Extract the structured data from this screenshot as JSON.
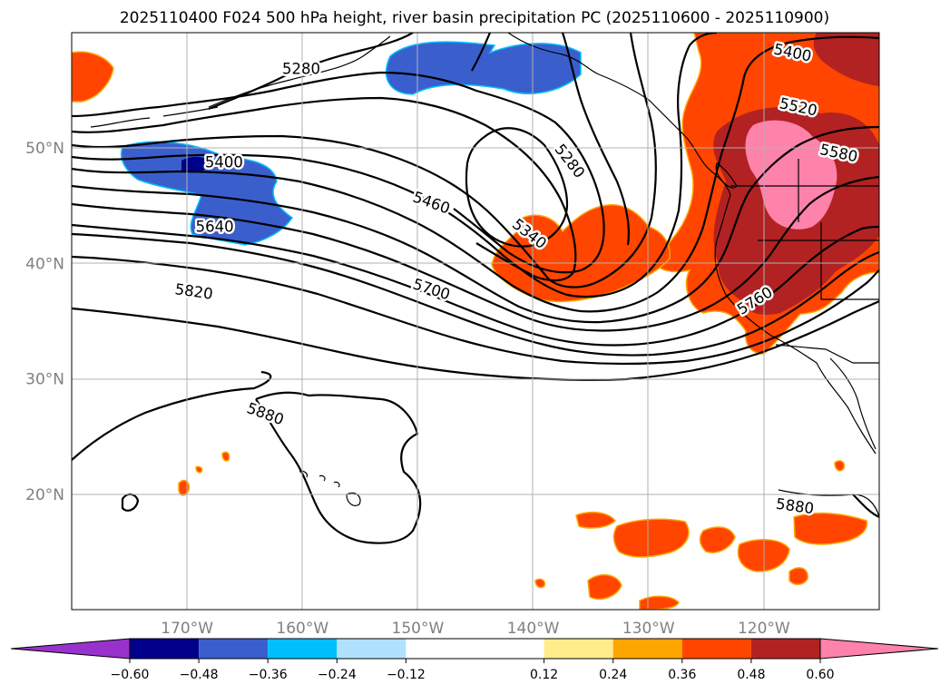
{
  "chart_data": {
    "type": "contour-map",
    "title": "2025110400 F024 500 hPa height, river basin precipitation PC (2025110600 - 2025110900)",
    "projection": "PlateCarree",
    "lon_range": [
      -180,
      -110
    ],
    "lat_range": [
      10,
      60
    ],
    "lat_ticks": [
      {
        "value": 50,
        "label": "50°N"
      },
      {
        "value": 40,
        "label": "40°N"
      },
      {
        "value": 30,
        "label": "30°N"
      },
      {
        "value": 20,
        "label": "20°N"
      }
    ],
    "lon_ticks": [
      {
        "value": -170,
        "label": "170°W"
      },
      {
        "value": -160,
        "label": "160°W"
      },
      {
        "value": -150,
        "label": "150°W"
      },
      {
        "value": -140,
        "label": "140°W"
      },
      {
        "value": -130,
        "label": "130°W"
      },
      {
        "value": -120,
        "label": "120°W"
      }
    ],
    "grid": true,
    "contour_variable": "500 hPa geopotential height (m)",
    "contour_interval": 60,
    "contour_labels": [
      {
        "value": "5280",
        "lon": -160.1,
        "lat": 56.9,
        "angle": 0
      },
      {
        "value": "5400",
        "lon": -166.8,
        "lat": 48.8,
        "angle": 0
      },
      {
        "value": "5640",
        "lon": -167.6,
        "lat": 43.2,
        "angle": 0
      },
      {
        "value": "5820",
        "lon": -169.4,
        "lat": 37.6,
        "angle": 8
      },
      {
        "value": "5880",
        "lon": -163.2,
        "lat": 27.0,
        "angle": 20
      },
      {
        "value": "5460",
        "lon": -148.8,
        "lat": 45.3,
        "angle": 20
      },
      {
        "value": "5700",
        "lon": -148.8,
        "lat": 37.8,
        "angle": 18
      },
      {
        "value": "5340",
        "lon": -140.3,
        "lat": 42.6,
        "angle": 38
      },
      {
        "value": "5280",
        "lon": -136.8,
        "lat": 48.9,
        "angle": 52
      },
      {
        "value": "5400",
        "lon": -117.5,
        "lat": 58.3,
        "angle": 12
      },
      {
        "value": "5520",
        "lon": -117.0,
        "lat": 53.6,
        "angle": 12
      },
      {
        "value": "5580",
        "lon": -113.5,
        "lat": 49.6,
        "angle": 12
      },
      {
        "value": "5760",
        "lon": -120.8,
        "lat": 36.8,
        "angle": -32
      },
      {
        "value": "5880",
        "lon": -117.3,
        "lat": 19.0,
        "angle": 8
      }
    ],
    "shading_variable": "river basin precipitation PC",
    "colorbar": {
      "orientation": "horizontal",
      "extend": "both",
      "boundaries": [
        -0.72,
        -0.6,
        -0.48,
        -0.36,
        -0.24,
        -0.12,
        0.12,
        0.24,
        0.36,
        0.48,
        0.6,
        0.72
      ],
      "colors": [
        "#9932cc",
        "#00008b",
        "#3a5fcd",
        "#00bfff",
        "#b0e2ff",
        "#ffffff",
        "#ffec8b",
        "#ffa500",
        "#ff4500",
        "#b22222",
        "#ff82ab"
      ],
      "tick_labels": [
        {
          "value": -0.6,
          "label": "−0.60"
        },
        {
          "value": -0.48,
          "label": "−0.48"
        },
        {
          "value": -0.36,
          "label": "−0.36"
        },
        {
          "value": -0.24,
          "label": "−0.24"
        },
        {
          "value": -0.12,
          "label": "−0.12"
        },
        {
          "value": 0.12,
          "label": "0.12"
        },
        {
          "value": 0.24,
          "label": "0.24"
        },
        {
          "value": 0.36,
          "label": "0.36"
        },
        {
          "value": 0.48,
          "label": "0.48"
        },
        {
          "value": 0.6,
          "label": "0.60"
        }
      ]
    }
  }
}
